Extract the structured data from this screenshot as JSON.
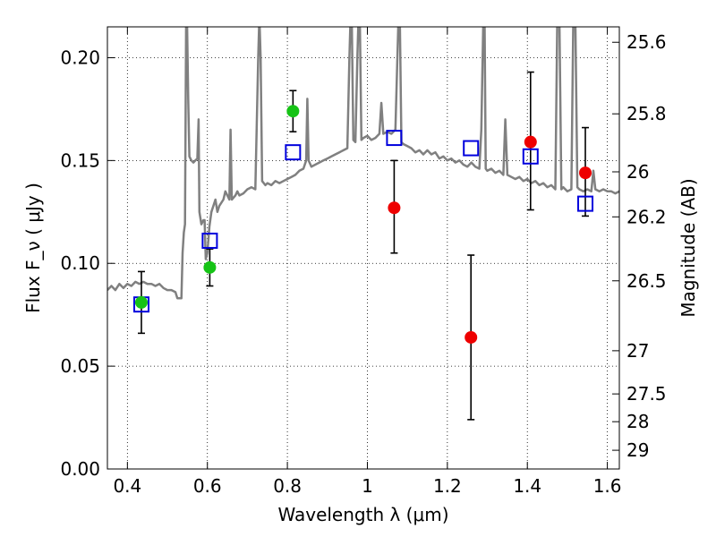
{
  "chart_data": {
    "type": "scatter",
    "xlabel": "Wavelength  λ (μm)",
    "ylabel": "Flux  F_ν  ( μJy )",
    "ylabel_right": "Magnitude (AB)",
    "xlim": [
      0.35,
      1.63
    ],
    "ylim": [
      0.0,
      0.215
    ],
    "x_ticks": [
      {
        "value": 0.4,
        "label": "0.4"
      },
      {
        "value": 0.6,
        "label": "0.6"
      },
      {
        "value": 0.8,
        "label": "0.8"
      },
      {
        "value": 1.0,
        "label": "1"
      },
      {
        "value": 1.2,
        "label": "1.2"
      },
      {
        "value": 1.4,
        "label": "1.4"
      },
      {
        "value": 1.6,
        "label": "1.6"
      }
    ],
    "y_ticks": [
      {
        "value": 0.0,
        "label": "0.00"
      },
      {
        "value": 0.05,
        "label": "0.05"
      },
      {
        "value": 0.1,
        "label": "0.10"
      },
      {
        "value": 0.15,
        "label": "0.15"
      },
      {
        "value": 0.2,
        "label": "0.20"
      }
    ],
    "right_ticks": [
      {
        "flux": 0.2075,
        "label": "25.6"
      },
      {
        "flux": 0.1727,
        "label": "25.8"
      },
      {
        "flux": 0.1445,
        "label": "26"
      },
      {
        "flux": 0.1226,
        "label": "26.2"
      },
      {
        "flux": 0.0915,
        "label": "26.5"
      },
      {
        "flux": 0.0575,
        "label": "27"
      },
      {
        "flux": 0.0365,
        "label": "27.5"
      },
      {
        "flux": 0.023,
        "label": "28"
      },
      {
        "flux": 0.0091,
        "label": "29"
      }
    ],
    "grid": true,
    "colors": {
      "green": "#16c316",
      "red": "#ee0000",
      "blue": "#0000dd",
      "template": "#808080"
    },
    "observed_green": [
      {
        "x": 0.435,
        "y": 0.081,
        "yerr": [
          0.066,
          0.096
        ]
      },
      {
        "x": 0.606,
        "y": 0.098,
        "yerr": [
          0.089,
          0.107
        ]
      },
      {
        "x": 0.814,
        "y": 0.174,
        "yerr": [
          0.164,
          0.184
        ]
      }
    ],
    "observed_red": [
      {
        "x": 1.067,
        "y": 0.127,
        "yerr": [
          0.105,
          0.15
        ]
      },
      {
        "x": 1.259,
        "y": 0.064,
        "yerr": [
          0.024,
          0.104
        ]
      },
      {
        "x": 1.408,
        "y": 0.159,
        "yerr": [
          0.126,
          0.193
        ]
      },
      {
        "x": 1.545,
        "y": 0.144,
        "yerr": [
          0.123,
          0.166
        ]
      }
    ],
    "model_squares": [
      {
        "x": 0.435,
        "y": 0.08
      },
      {
        "x": 0.606,
        "y": 0.111
      },
      {
        "x": 0.814,
        "y": 0.154
      },
      {
        "x": 1.067,
        "y": 0.161
      },
      {
        "x": 1.259,
        "y": 0.156
      },
      {
        "x": 1.408,
        "y": 0.152
      },
      {
        "x": 1.545,
        "y": 0.129
      }
    ],
    "template_spectrum": [
      [
        0.35,
        0.087
      ],
      [
        0.36,
        0.089
      ],
      [
        0.37,
        0.087
      ],
      [
        0.38,
        0.09
      ],
      [
        0.39,
        0.088
      ],
      [
        0.4,
        0.09
      ],
      [
        0.41,
        0.089
      ],
      [
        0.42,
        0.091
      ],
      [
        0.43,
        0.09
      ],
      [
        0.44,
        0.091
      ],
      [
        0.45,
        0.09
      ],
      [
        0.46,
        0.09
      ],
      [
        0.47,
        0.089
      ],
      [
        0.48,
        0.09
      ],
      [
        0.49,
        0.088
      ],
      [
        0.5,
        0.087
      ],
      [
        0.51,
        0.087
      ],
      [
        0.52,
        0.086
      ],
      [
        0.525,
        0.083
      ],
      [
        0.53,
        0.083
      ],
      [
        0.535,
        0.083
      ],
      [
        0.538,
        0.105
      ],
      [
        0.541,
        0.115
      ],
      [
        0.544,
        0.119
      ],
      [
        0.547,
        0.22
      ],
      [
        0.549,
        0.22
      ],
      [
        0.552,
        0.18
      ],
      [
        0.555,
        0.152
      ],
      [
        0.56,
        0.15
      ],
      [
        0.565,
        0.149
      ],
      [
        0.57,
        0.15
      ],
      [
        0.575,
        0.151
      ],
      [
        0.578,
        0.17
      ],
      [
        0.58,
        0.125
      ],
      [
        0.585,
        0.119
      ],
      [
        0.59,
        0.121
      ],
      [
        0.593,
        0.121
      ],
      [
        0.596,
        0.102
      ],
      [
        0.6,
        0.105
      ],
      [
        0.605,
        0.118
      ],
      [
        0.61,
        0.125
      ],
      [
        0.62,
        0.131
      ],
      [
        0.625,
        0.125
      ],
      [
        0.63,
        0.128
      ],
      [
        0.64,
        0.131
      ],
      [
        0.645,
        0.135
      ],
      [
        0.65,
        0.133
      ],
      [
        0.655,
        0.131
      ],
      [
        0.658,
        0.165
      ],
      [
        0.661,
        0.131
      ],
      [
        0.67,
        0.133
      ],
      [
        0.675,
        0.135
      ],
      [
        0.68,
        0.133
      ],
      [
        0.69,
        0.134
      ],
      [
        0.7,
        0.136
      ],
      [
        0.71,
        0.137
      ],
      [
        0.72,
        0.136
      ],
      [
        0.727,
        0.2
      ],
      [
        0.73,
        0.22
      ],
      [
        0.733,
        0.2
      ],
      [
        0.737,
        0.14
      ],
      [
        0.745,
        0.138
      ],
      [
        0.75,
        0.139
      ],
      [
        0.76,
        0.138
      ],
      [
        0.77,
        0.14
      ],
      [
        0.78,
        0.139
      ],
      [
        0.79,
        0.14
      ],
      [
        0.8,
        0.141
      ],
      [
        0.81,
        0.142
      ],
      [
        0.82,
        0.143
      ],
      [
        0.83,
        0.145
      ],
      [
        0.84,
        0.146
      ],
      [
        0.847,
        0.15
      ],
      [
        0.85,
        0.18
      ],
      [
        0.853,
        0.15
      ],
      [
        0.86,
        0.147
      ],
      [
        0.87,
        0.148
      ],
      [
        0.88,
        0.149
      ],
      [
        0.89,
        0.15
      ],
      [
        0.9,
        0.151
      ],
      [
        0.91,
        0.152
      ],
      [
        0.92,
        0.153
      ],
      [
        0.93,
        0.154
      ],
      [
        0.94,
        0.155
      ],
      [
        0.95,
        0.156
      ],
      [
        0.955,
        0.2
      ],
      [
        0.958,
        0.22
      ],
      [
        0.961,
        0.22
      ],
      [
        0.965,
        0.16
      ],
      [
        0.97,
        0.159
      ],
      [
        0.975,
        0.2
      ],
      [
        0.978,
        0.22
      ],
      [
        0.981,
        0.22
      ],
      [
        0.985,
        0.16
      ],
      [
        0.99,
        0.161
      ],
      [
        1.0,
        0.162
      ],
      [
        1.01,
        0.16
      ],
      [
        1.02,
        0.161
      ],
      [
        1.03,
        0.163
      ],
      [
        1.035,
        0.178
      ],
      [
        1.04,
        0.163
      ],
      [
        1.05,
        0.164
      ],
      [
        1.06,
        0.163
      ],
      [
        1.07,
        0.165
      ],
      [
        1.075,
        0.2
      ],
      [
        1.078,
        0.22
      ],
      [
        1.081,
        0.22
      ],
      [
        1.085,
        0.159
      ],
      [
        1.09,
        0.158
      ],
      [
        1.1,
        0.157
      ],
      [
        1.11,
        0.156
      ],
      [
        1.12,
        0.154
      ],
      [
        1.13,
        0.155
      ],
      [
        1.14,
        0.153
      ],
      [
        1.15,
        0.155
      ],
      [
        1.16,
        0.153
      ],
      [
        1.17,
        0.154
      ],
      [
        1.18,
        0.151
      ],
      [
        1.19,
        0.152
      ],
      [
        1.2,
        0.15
      ],
      [
        1.21,
        0.151
      ],
      [
        1.22,
        0.149
      ],
      [
        1.23,
        0.15
      ],
      [
        1.24,
        0.148
      ],
      [
        1.25,
        0.147
      ],
      [
        1.26,
        0.149
      ],
      [
        1.27,
        0.147
      ],
      [
        1.28,
        0.146
      ],
      [
        1.285,
        0.165
      ],
      [
        1.29,
        0.22
      ],
      [
        1.293,
        0.22
      ],
      [
        1.296,
        0.146
      ],
      [
        1.3,
        0.145
      ],
      [
        1.31,
        0.146
      ],
      [
        1.32,
        0.144
      ],
      [
        1.33,
        0.145
      ],
      [
        1.34,
        0.143
      ],
      [
        1.345,
        0.17
      ],
      [
        1.35,
        0.143
      ],
      [
        1.36,
        0.142
      ],
      [
        1.37,
        0.141
      ],
      [
        1.38,
        0.142
      ],
      [
        1.39,
        0.14
      ],
      [
        1.4,
        0.141
      ],
      [
        1.41,
        0.139
      ],
      [
        1.42,
        0.14
      ],
      [
        1.43,
        0.138
      ],
      [
        1.44,
        0.139
      ],
      [
        1.45,
        0.137
      ],
      [
        1.46,
        0.138
      ],
      [
        1.47,
        0.136
      ],
      [
        1.475,
        0.22
      ],
      [
        1.48,
        0.22
      ],
      [
        1.485,
        0.136
      ],
      [
        1.49,
        0.137
      ],
      [
        1.5,
        0.135
      ],
      [
        1.51,
        0.136
      ],
      [
        1.515,
        0.22
      ],
      [
        1.52,
        0.22
      ],
      [
        1.525,
        0.137
      ],
      [
        1.53,
        0.136
      ],
      [
        1.54,
        0.135
      ],
      [
        1.55,
        0.136
      ],
      [
        1.56,
        0.135
      ],
      [
        1.565,
        0.145
      ],
      [
        1.57,
        0.136
      ],
      [
        1.58,
        0.135
      ],
      [
        1.59,
        0.136
      ],
      [
        1.6,
        0.135
      ],
      [
        1.61,
        0.135
      ],
      [
        1.62,
        0.134
      ],
      [
        1.63,
        0.135
      ]
    ]
  }
}
